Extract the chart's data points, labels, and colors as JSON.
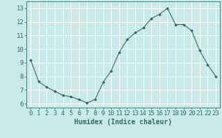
{
  "x": [
    0,
    1,
    2,
    3,
    4,
    5,
    6,
    7,
    8,
    9,
    10,
    11,
    12,
    13,
    14,
    15,
    16,
    17,
    18,
    19,
    20,
    21,
    22,
    23
  ],
  "y": [
    9.2,
    7.6,
    7.2,
    6.9,
    6.6,
    6.5,
    6.3,
    6.05,
    6.3,
    7.55,
    8.4,
    9.75,
    10.7,
    11.2,
    11.55,
    12.25,
    12.55,
    13.0,
    11.8,
    11.8,
    11.35,
    9.9,
    8.85,
    8.0
  ],
  "line_color": "#2e6b5e",
  "marker": "D",
  "marker_size": 2.0,
  "bg_color": "#caeaea",
  "grid_color": "#ffffff",
  "xlabel": "Humidex (Indice chaleur)",
  "xlabel_fontsize": 7,
  "ylabel_ticks": [
    6,
    7,
    8,
    9,
    10,
    11,
    12,
    13
  ],
  "xlim": [
    -0.5,
    23.5
  ],
  "ylim": [
    5.7,
    13.5
  ],
  "tick_label_fontsize": 6.5,
  "tick_color": "#2e6b5e"
}
